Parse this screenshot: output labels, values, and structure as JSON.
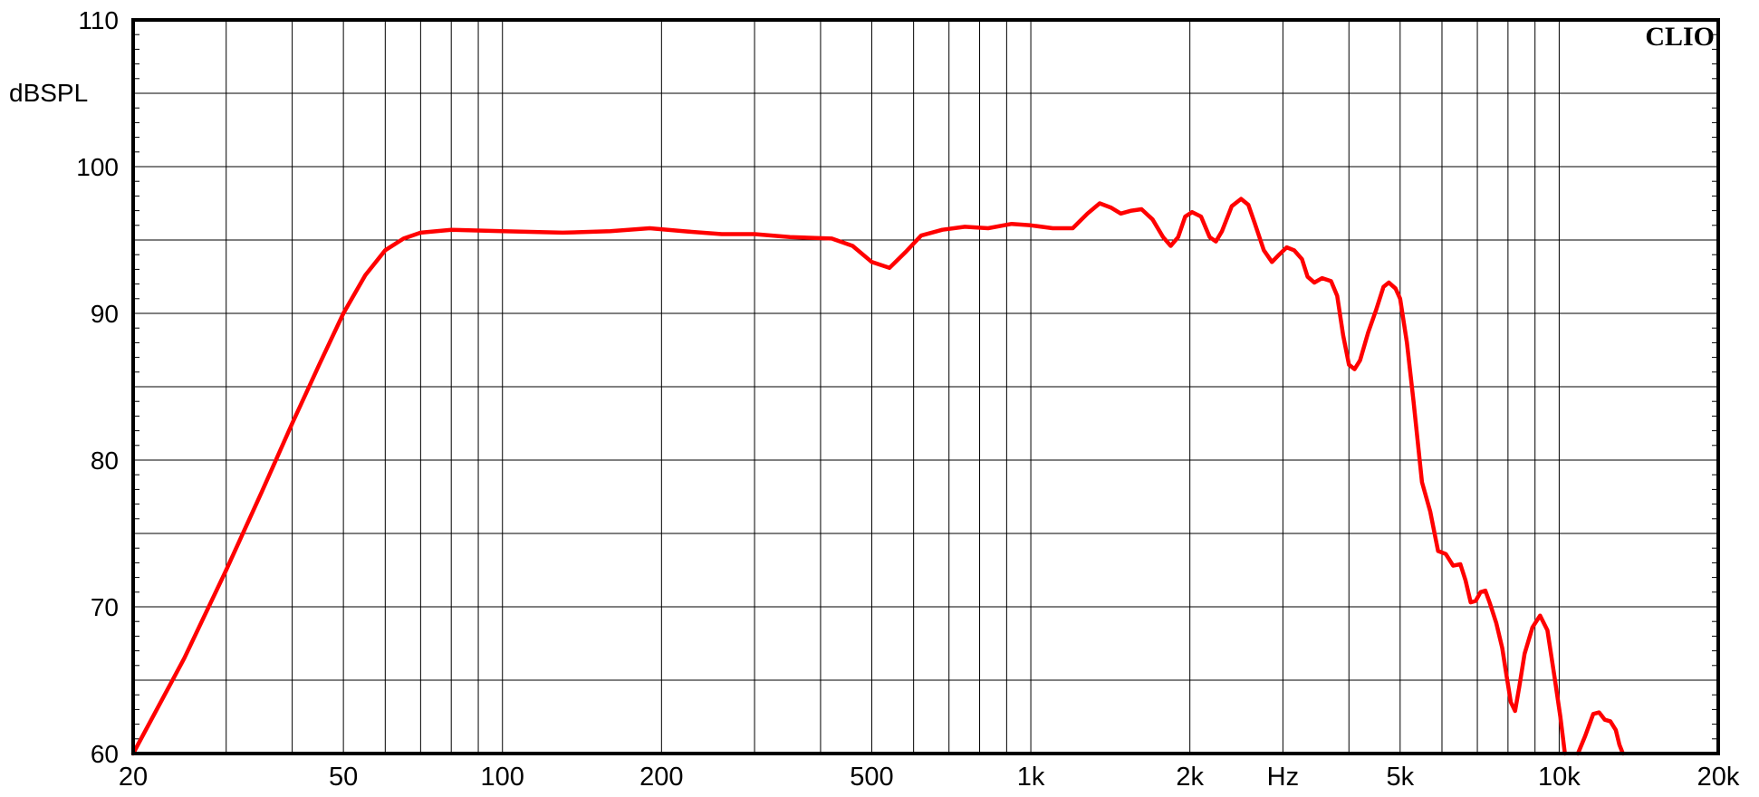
{
  "chart_data": {
    "type": "line",
    "title": "",
    "brand": "CLIO",
    "ylabel": "dBSPL",
    "xlabel": "Hz",
    "xscale": "log",
    "xlim": [
      20,
      20000
    ],
    "ylim": [
      60,
      110
    ],
    "grid": true,
    "yticks": [
      {
        "v": 60,
        "label": "60"
      },
      {
        "v": 70,
        "label": "70"
      },
      {
        "v": 80,
        "label": "80"
      },
      {
        "v": 90,
        "label": "90"
      },
      {
        "v": 100,
        "label": "100"
      },
      {
        "v": 110,
        "label": "110"
      }
    ],
    "xticks": [
      {
        "v": 20,
        "label": "20"
      },
      {
        "v": 50,
        "label": "50"
      },
      {
        "v": 100,
        "label": "100"
      },
      {
        "v": 200,
        "label": "200"
      },
      {
        "v": 500,
        "label": "500"
      },
      {
        "v": 1000,
        "label": "1k"
      },
      {
        "v": 2000,
        "label": "2k"
      },
      {
        "v": 5000,
        "label": "5k"
      },
      {
        "v": 10000,
        "label": "10k"
      },
      {
        "v": 20000,
        "label": "20k"
      }
    ],
    "series": [
      {
        "color": "#ff0000",
        "points": [
          [
            20,
            60
          ],
          [
            25,
            66.5
          ],
          [
            30,
            72.5
          ],
          [
            35,
            77.8
          ],
          [
            40,
            82.5
          ],
          [
            45,
            86.5
          ],
          [
            50,
            90
          ],
          [
            55,
            92.6
          ],
          [
            60,
            94.3
          ],
          [
            65,
            95.1
          ],
          [
            70,
            95.5
          ],
          [
            80,
            95.7
          ],
          [
            100,
            95.6
          ],
          [
            130,
            95.5
          ],
          [
            160,
            95.6
          ],
          [
            190,
            95.8
          ],
          [
            220,
            95.6
          ],
          [
            260,
            95.4
          ],
          [
            300,
            95.4
          ],
          [
            350,
            95.2
          ],
          [
            420,
            95.1
          ],
          [
            460,
            94.6
          ],
          [
            500,
            93.5
          ],
          [
            540,
            93.1
          ],
          [
            580,
            94.2
          ],
          [
            620,
            95.3
          ],
          [
            680,
            95.7
          ],
          [
            750,
            95.9
          ],
          [
            830,
            95.8
          ],
          [
            920,
            96.1
          ],
          [
            1000,
            96
          ],
          [
            1100,
            95.8
          ],
          [
            1200,
            95.8
          ],
          [
            1280,
            96.8
          ],
          [
            1350,
            97.5
          ],
          [
            1420,
            97.2
          ],
          [
            1480,
            96.8
          ],
          [
            1550,
            97
          ],
          [
            1620,
            97.1
          ],
          [
            1700,
            96.4
          ],
          [
            1780,
            95.2
          ],
          [
            1840,
            94.6
          ],
          [
            1900,
            95.2
          ],
          [
            1960,
            96.6
          ],
          [
            2020,
            96.9
          ],
          [
            2100,
            96.6
          ],
          [
            2180,
            95.2
          ],
          [
            2240,
            94.9
          ],
          [
            2300,
            95.6
          ],
          [
            2400,
            97.3
          ],
          [
            2500,
            97.8
          ],
          [
            2580,
            97.4
          ],
          [
            2650,
            96.2
          ],
          [
            2760,
            94.3
          ],
          [
            2860,
            93.5
          ],
          [
            2950,
            94
          ],
          [
            3050,
            94.5
          ],
          [
            3150,
            94.3
          ],
          [
            3260,
            93.7
          ],
          [
            3340,
            92.5
          ],
          [
            3440,
            92.1
          ],
          [
            3560,
            92.4
          ],
          [
            3700,
            92.2
          ],
          [
            3800,
            91.2
          ],
          [
            3900,
            88.5
          ],
          [
            4000,
            86.5
          ],
          [
            4100,
            86.2
          ],
          [
            4200,
            86.8
          ],
          [
            4350,
            88.7
          ],
          [
            4500,
            90.2
          ],
          [
            4650,
            91.8
          ],
          [
            4760,
            92.1
          ],
          [
            4900,
            91.7
          ],
          [
            5000,
            91
          ],
          [
            5150,
            88
          ],
          [
            5300,
            84
          ],
          [
            5500,
            78.5
          ],
          [
            5700,
            76.5
          ],
          [
            5900,
            73.8
          ],
          [
            6100,
            73.6
          ],
          [
            6300,
            72.8
          ],
          [
            6500,
            72.9
          ],
          [
            6650,
            71.8
          ],
          [
            6800,
            70.3
          ],
          [
            6950,
            70.4
          ],
          [
            7100,
            71
          ],
          [
            7250,
            71.1
          ],
          [
            7400,
            70.2
          ],
          [
            7600,
            68.9
          ],
          [
            7800,
            67.2
          ],
          [
            7950,
            65.3
          ],
          [
            8100,
            63.5
          ],
          [
            8250,
            62.9
          ],
          [
            8400,
            64.5
          ],
          [
            8600,
            66.8
          ],
          [
            8900,
            68.6
          ],
          [
            9200,
            69.4
          ],
          [
            9500,
            68.4
          ],
          [
            9800,
            65.2
          ],
          [
            10050,
            62.5
          ],
          [
            10250,
            60
          ]
        ]
      },
      {
        "color": "#ff0000",
        "points": [
          [
            10850,
            60
          ],
          [
            11200,
            61.2
          ],
          [
            11600,
            62.7
          ],
          [
            11900,
            62.8
          ],
          [
            12200,
            62.3
          ],
          [
            12500,
            62.2
          ],
          [
            12800,
            61.6
          ],
          [
            13000,
            60.6
          ],
          [
            13200,
            60
          ]
        ]
      }
    ]
  }
}
